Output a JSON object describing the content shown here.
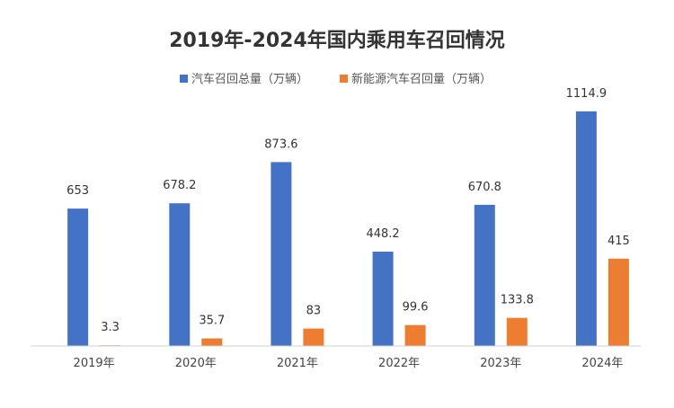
{
  "chart_data": {
    "type": "bar",
    "title": "2019年-2024年国内乘用车召回情况",
    "categories": [
      "2019年",
      "2020年",
      "2021年",
      "2022年",
      "2023年",
      "2024年"
    ],
    "series": [
      {
        "name": "汽车召回总量（万辆）",
        "color": "#4472C4",
        "values": [
          653,
          678.2,
          873.6,
          448.2,
          670.8,
          1114.9
        ],
        "labels": [
          "653",
          "678.2",
          "873.6",
          "448.2",
          "670.8",
          "1114.9"
        ]
      },
      {
        "name": "新能源汽车召回量（万辆）",
        "color": "#ED7D31",
        "values": [
          3.3,
          35.7,
          83,
          99.6,
          133.8,
          415
        ],
        "labels": [
          "3.3",
          "35.7",
          "83",
          "99.6",
          "133.8",
          "415"
        ]
      }
    ],
    "ylim": [
      0,
      1200
    ],
    "legend_position": "top-center",
    "grid": false
  }
}
